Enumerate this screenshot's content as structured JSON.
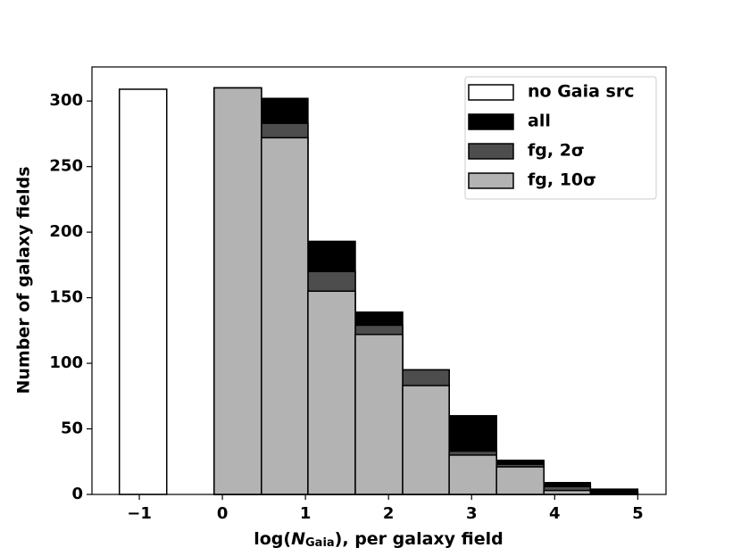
{
  "chart_data": {
    "type": "histogram",
    "xlabel": [
      "log(",
      "N",
      "Gaia",
      "), per galaxy field"
    ],
    "ylabel": "Number of galaxy fields",
    "xlim": [
      -1.57,
      5.34
    ],
    "ylim": [
      0,
      326
    ],
    "xticks": [
      {
        "value": -1,
        "label": "−1"
      },
      0,
      1,
      2,
      3,
      4,
      5
    ],
    "yticks": [
      0,
      50,
      100,
      150,
      200,
      250,
      300
    ],
    "bins": [
      -0.1,
      0.47,
      1.03,
      1.6,
      2.17,
      2.73,
      3.3,
      3.87,
      4.43,
      5.0
    ],
    "edgecolor": "#000000",
    "legend": "upper right",
    "series": [
      {
        "name": "no Gaia src",
        "color": "#ffffff",
        "bins": [
          -1.24,
          -0.67
        ],
        "values": [
          309
        ]
      },
      {
        "name": "all",
        "color": "#000000",
        "values": [
          310,
          302,
          193,
          139,
          95,
          60,
          26,
          9,
          4
        ]
      },
      {
        "name": "fg, 2σ",
        "color": "#4d4d4d",
        "values": [
          310,
          283,
          170,
          129,
          95,
          33,
          23,
          6,
          2
        ]
      },
      {
        "name": "fg, 10σ",
        "color": "#b3b3b3",
        "values": [
          310,
          272,
          155,
          122,
          83,
          30,
          21,
          3,
          1
        ]
      }
    ]
  }
}
